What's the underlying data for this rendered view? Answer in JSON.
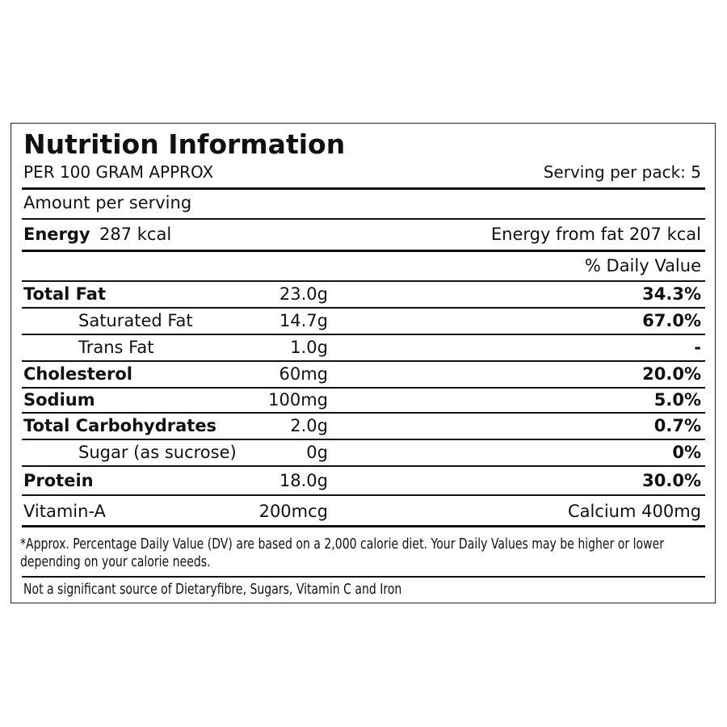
{
  "header": {
    "title": "Nutrition Information",
    "basis": "PER 100 GRAM APPROX",
    "servings": "Serving per pack: 5"
  },
  "amount_label": "Amount per serving",
  "energy": {
    "label": "Energy",
    "value": "287 kcal",
    "from_fat": "Energy from fat 207 kcal"
  },
  "dv_heading": "% Daily Value",
  "rows": [
    {
      "name": "Total Fat",
      "amount": "23.0g",
      "dv": "34.3%",
      "bold": true,
      "indent": false
    },
    {
      "name": "Saturated Fat",
      "amount": "14.7g",
      "dv": "67.0%",
      "bold": false,
      "indent": true
    },
    {
      "name": "Trans Fat",
      "amount": "1.0g",
      "dv": "-",
      "bold": false,
      "indent": true
    },
    {
      "name": "Cholesterol",
      "amount": "60mg",
      "dv": "20.0%",
      "bold": true,
      "indent": false
    },
    {
      "name": "Sodium",
      "amount": "100mg",
      "dv": "5.0%",
      "bold": true,
      "indent": false
    },
    {
      "name": "Total Carbohydrates",
      "amount": "2.0g",
      "dv": "0.7%",
      "bold": true,
      "indent": false
    },
    {
      "name": "Sugar (as sucrose)",
      "amount": "0g",
      "dv": "0%",
      "bold": false,
      "indent": true
    },
    {
      "name": "Protein",
      "amount": "18.0g",
      "dv": "30.0%",
      "bold": true,
      "indent": false
    }
  ],
  "vitamins": {
    "left_label": "Vitamin-A",
    "left_value": "200mcg",
    "right": "Calcium 400mg"
  },
  "footnote": "*Approx. Percentage Daily Value (DV) are based on a 2,000 calorie diet. Your Daily Values may be higher or lower depending on your calorie needs.",
  "note": "Not a significant source of Dietaryfibre, Sugars, Vitamin C and Iron"
}
